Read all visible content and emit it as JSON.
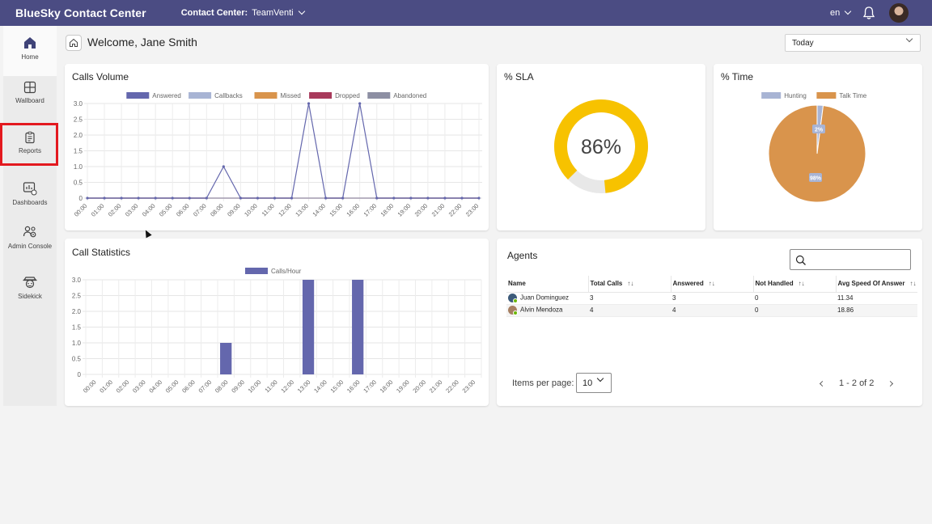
{
  "topbar": {
    "app_title": "BlueSky Contact Center",
    "contact_center_label": "Contact Center:",
    "contact_center_value": "TeamVenti",
    "language": "en",
    "bar_color": "#4b4c83"
  },
  "sidebar": {
    "items": [
      {
        "label": "Home",
        "icon": "home-icon"
      },
      {
        "label": "Wallboard",
        "icon": "wallboard-icon"
      },
      {
        "label": "Reports",
        "icon": "reports-icon"
      },
      {
        "label": "Dashboards",
        "icon": "dashboards-icon"
      },
      {
        "label": "Admin Console",
        "icon": "admin-console-icon"
      },
      {
        "label": "Sidekick",
        "icon": "sidekick-icon"
      }
    ],
    "highlight_color": "#e3191f"
  },
  "header": {
    "welcome": "Welcome, Jane Smith",
    "range": "Today"
  },
  "calls_volume": {
    "title": "Calls Volume",
    "legend": [
      {
        "name": "Answered",
        "color": "#6467ad"
      },
      {
        "name": "Callbacks",
        "color": "#a8b4d4"
      },
      {
        "name": "Missed",
        "color": "#d9944c"
      },
      {
        "name": "Dropped",
        "color": "#a83a5b"
      },
      {
        "name": "Abandoned",
        "color": "#8d8fa3"
      }
    ]
  },
  "sla": {
    "title": "% SLA",
    "value_label": "86%",
    "gauge_color": "#f7c200",
    "track_color": "#e8e8e8"
  },
  "time": {
    "title": "% Time",
    "legend": [
      {
        "name": "Hunting",
        "color": "#a8b4d4"
      },
      {
        "name": "Talk Time",
        "color": "#d9944c"
      }
    ],
    "label_small": "2%",
    "label_large": "98%"
  },
  "call_statistics": {
    "title": "Call Statistics",
    "legend": [
      {
        "name": "Calls/Hour",
        "color": "#6467ad"
      }
    ]
  },
  "agents": {
    "title": "Agents",
    "columns": [
      "Name",
      "Total Calls",
      "Answered",
      "Not Handled",
      "Avg Speed Of Answer"
    ],
    "rows": [
      {
        "name": "Juan Dominguez",
        "total": "3",
        "answered": "3",
        "not_handled": "0",
        "avg": "11.34"
      },
      {
        "name": "Alvin Mendoza",
        "total": "4",
        "answered": "4",
        "not_handled": "0",
        "avg": "18.86"
      }
    ],
    "items_per_page_label": "Items per page:",
    "items_per_page": "10",
    "range_label": "1 - 2 of 2"
  },
  "chart_data": [
    {
      "type": "line",
      "title": "Calls Volume",
      "x": [
        "00:00",
        "01:00",
        "02:00",
        "03:00",
        "04:00",
        "05:00",
        "06:00",
        "07:00",
        "08:00",
        "09:00",
        "10:00",
        "11:00",
        "12:00",
        "13:00",
        "14:00",
        "15:00",
        "16:00",
        "17:00",
        "18:00",
        "19:00",
        "20:00",
        "21:00",
        "22:00",
        "23:00"
      ],
      "series": [
        {
          "name": "Answered",
          "values": [
            0,
            0,
            0,
            0,
            0,
            0,
            0,
            0,
            1,
            0,
            0,
            0,
            0,
            3,
            0,
            0,
            3,
            0,
            0,
            0,
            0,
            0,
            0,
            0
          ]
        },
        {
          "name": "Callbacks",
          "values": [
            0,
            0,
            0,
            0,
            0,
            0,
            0,
            0,
            0,
            0,
            0,
            0,
            0,
            0,
            0,
            0,
            0,
            0,
            0,
            0,
            0,
            0,
            0,
            0
          ]
        },
        {
          "name": "Missed",
          "values": [
            0,
            0,
            0,
            0,
            0,
            0,
            0,
            0,
            0,
            0,
            0,
            0,
            0,
            0,
            0,
            0,
            0,
            0,
            0,
            0,
            0,
            0,
            0,
            0
          ]
        },
        {
          "name": "Dropped",
          "values": [
            0,
            0,
            0,
            0,
            0,
            0,
            0,
            0,
            0,
            0,
            0,
            0,
            0,
            0,
            0,
            0,
            0,
            0,
            0,
            0,
            0,
            0,
            0,
            0
          ]
        },
        {
          "name": "Abandoned",
          "values": [
            0,
            0,
            0,
            0,
            0,
            0,
            0,
            0,
            0,
            0,
            0,
            0,
            0,
            0,
            0,
            0,
            0,
            0,
            0,
            0,
            0,
            0,
            0,
            0
          ]
        }
      ],
      "yticks": [
        "0",
        "0.5",
        "1.0",
        "1.5",
        "2.0",
        "2.5",
        "3.0"
      ],
      "ylim": [
        0,
        3
      ],
      "grid": true,
      "legend": "top"
    },
    {
      "type": "pie",
      "title": "% Time",
      "categories": [
        "Hunting",
        "Talk Time"
      ],
      "values": [
        2,
        98
      ],
      "legend": "top"
    },
    {
      "type": "bar",
      "title": "Call Statistics",
      "categories": [
        "00:00",
        "01:00",
        "02:00",
        "03:00",
        "04:00",
        "05:00",
        "06:00",
        "07:00",
        "08:00",
        "09:00",
        "10:00",
        "11:00",
        "12:00",
        "13:00",
        "14:00",
        "15:00",
        "16:00",
        "17:00",
        "18:00",
        "19:00",
        "20:00",
        "21:00",
        "22:00",
        "23:00"
      ],
      "series": [
        {
          "name": "Calls/Hour",
          "values": [
            0,
            0,
            0,
            0,
            0,
            0,
            0,
            0,
            1,
            0,
            0,
            0,
            0,
            3,
            0,
            0,
            3,
            0,
            0,
            0,
            0,
            0,
            0,
            0
          ]
        }
      ],
      "yticks": [
        "0",
        "0.5",
        "1.0",
        "1.5",
        "2.0",
        "2.5",
        "3.0"
      ],
      "ylim": [
        0,
        3
      ],
      "grid": true,
      "legend": "top"
    },
    {
      "type": "pie",
      "title": "% SLA",
      "categories": [
        "SLA"
      ],
      "values": [
        86
      ]
    }
  ]
}
